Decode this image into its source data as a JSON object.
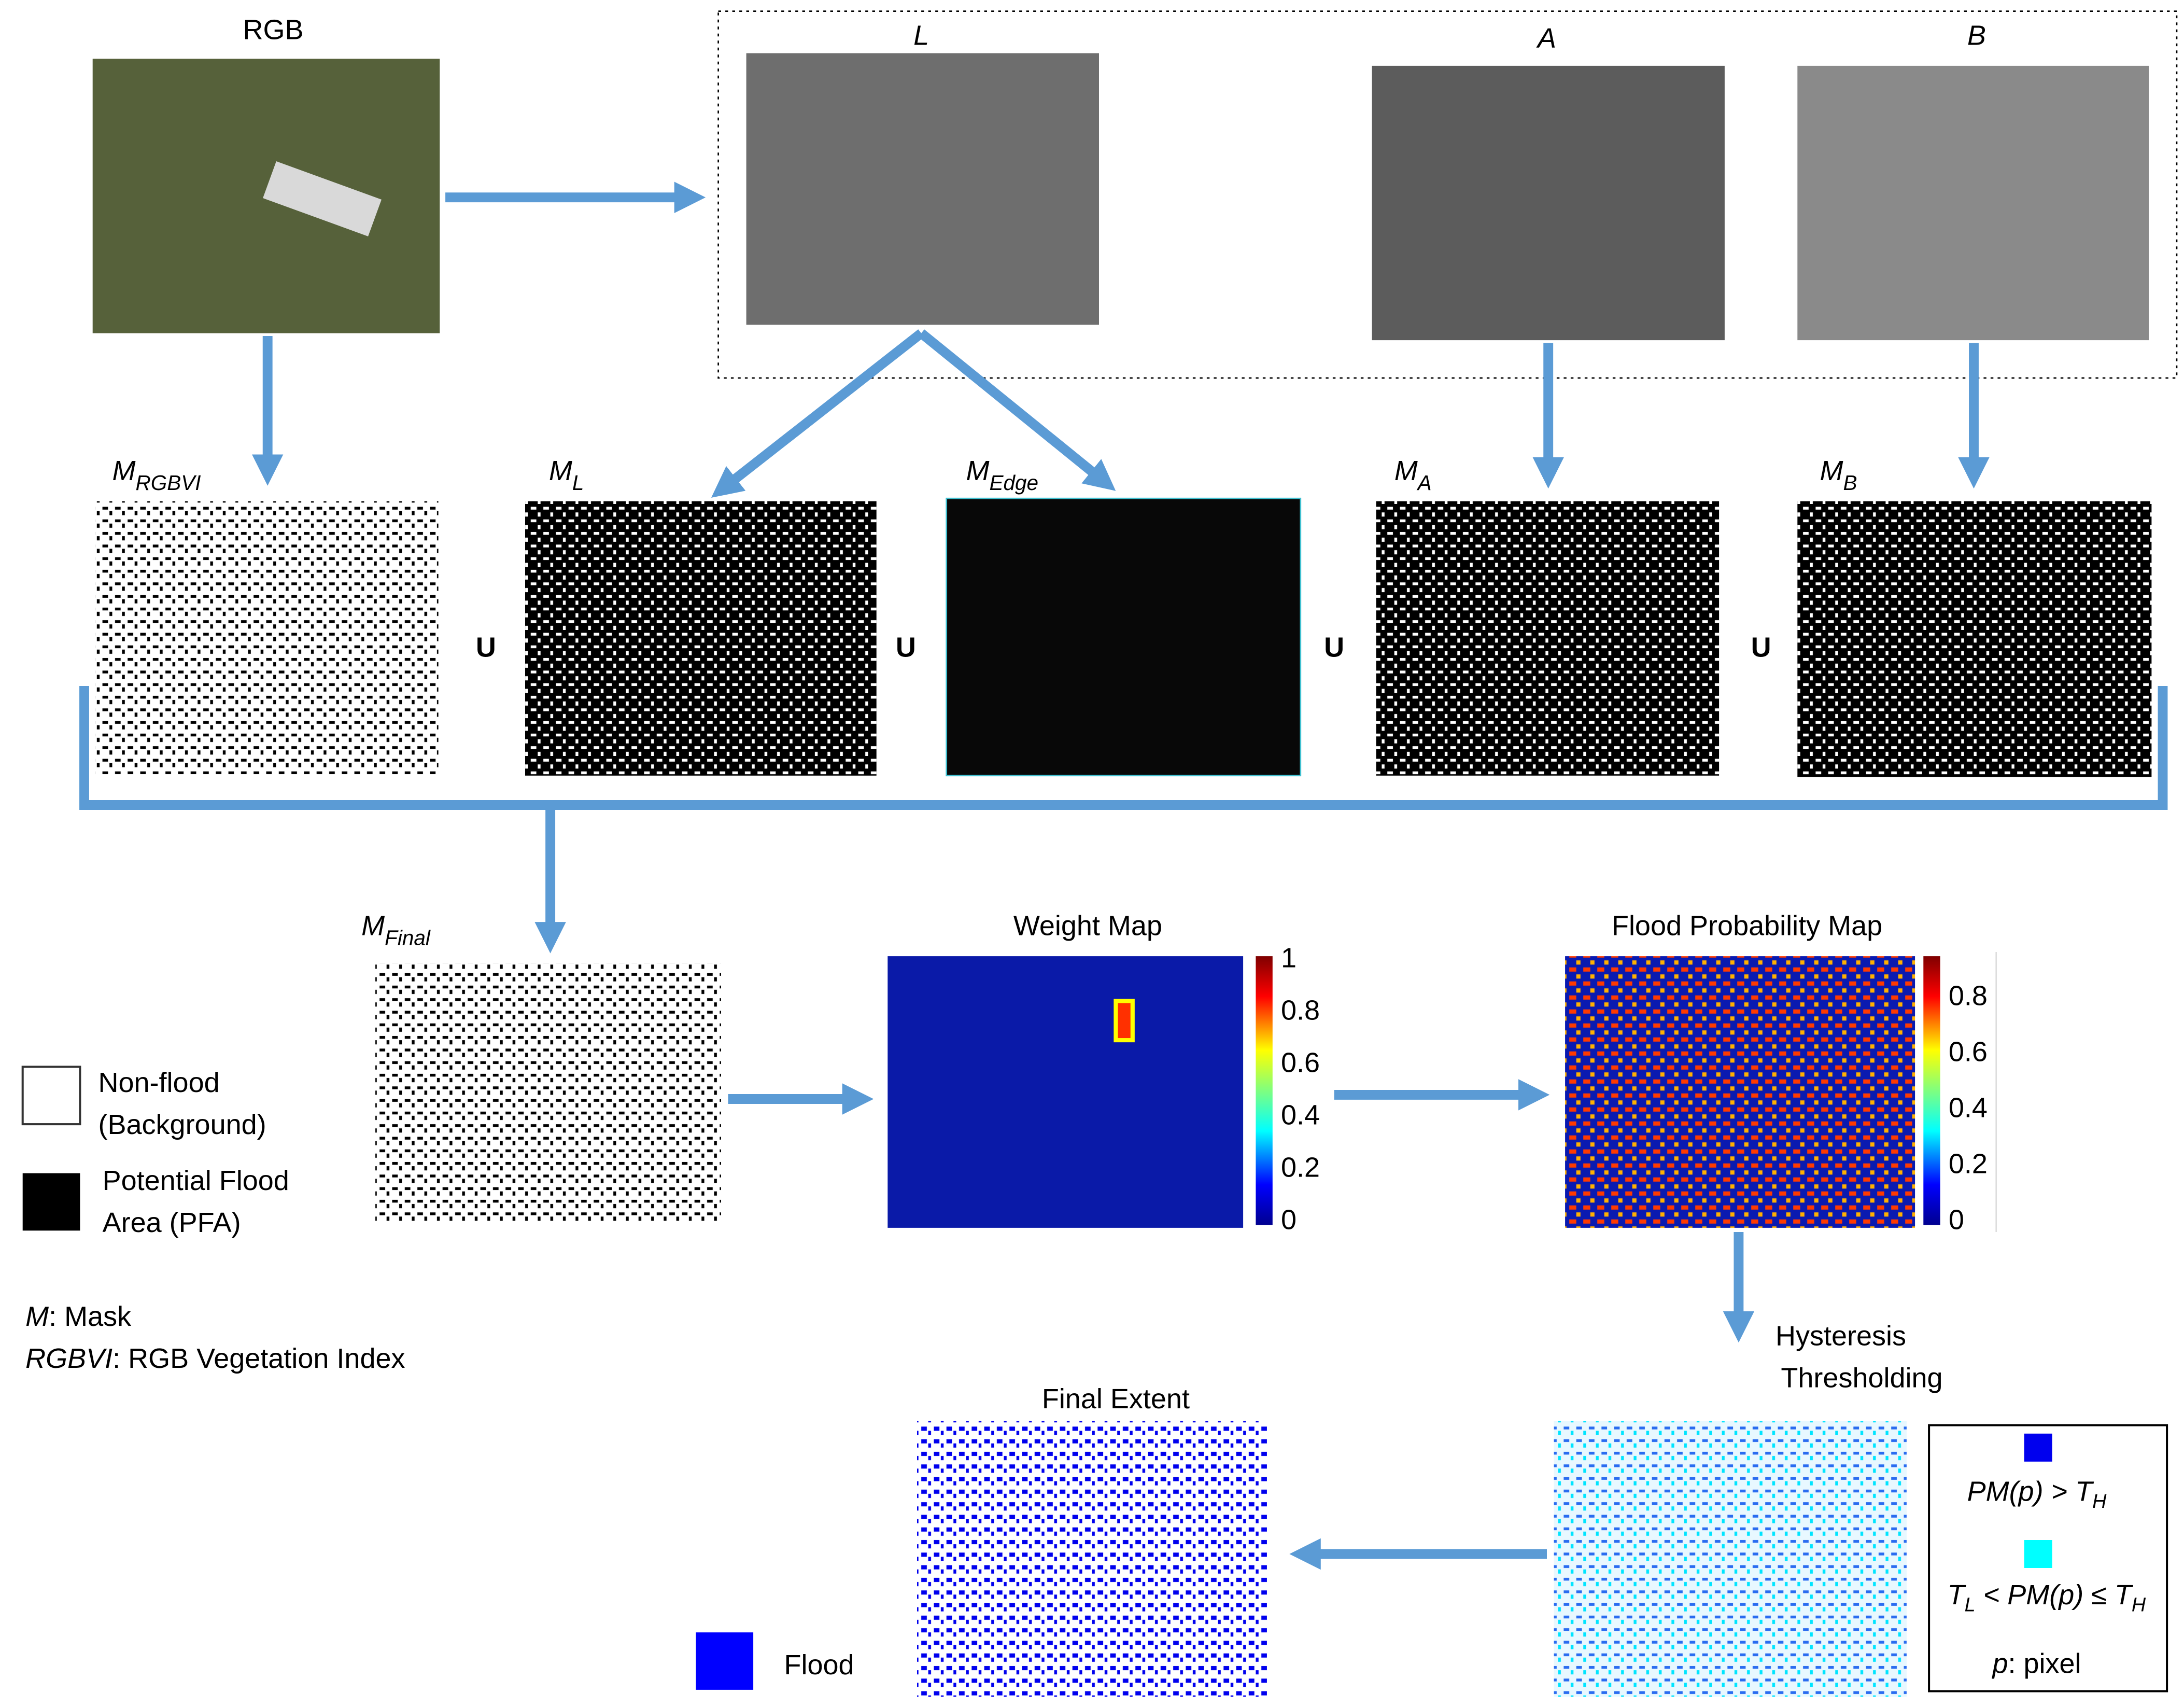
{
  "images": {
    "rgb": "RGB",
    "lab": {
      "l": "L",
      "a": "A",
      "b": "B"
    },
    "masks": [
      {
        "symbol": "M",
        "sub": "RGBVI"
      },
      {
        "symbol": "M",
        "sub": "L"
      },
      {
        "symbol": "M",
        "sub": "Edge"
      },
      {
        "symbol": "M",
        "sub": "A"
      },
      {
        "symbol": "M",
        "sub": "B"
      }
    ],
    "unions": [
      "U",
      "U",
      "U",
      "U"
    ],
    "final_mask": {
      "symbol": "M",
      "sub": "Final"
    },
    "weight_map": {
      "title": "Weight Map",
      "colorbar_ticks": [
        1,
        0.8,
        0.6,
        0.4,
        0.2,
        0
      ]
    },
    "probability_map": {
      "title": "Flood Probability Map",
      "colorbar_ticks": [
        0.8,
        0.6,
        0.4,
        0.2,
        0
      ]
    },
    "hysteresis": [
      "Hysteresis",
      "Thresholding"
    ],
    "final_extent": "Final Extent"
  },
  "legend": {
    "non_flood": [
      "Non-flood",
      "(Background)"
    ],
    "pfa": [
      "Potential Flood",
      "Area (PFA)"
    ],
    "notes": [
      {
        "term": "M",
        "text": ": Mask"
      },
      {
        "term": "RGBVI",
        "text": ": RGB Vegetation Index"
      }
    ],
    "flood": "Flood"
  },
  "threshold_legend": {
    "high": {
      "lhs": "PM(p) > T",
      "sub": "H"
    },
    "mid": {
      "t": "T",
      "sub1": "L",
      "middle": " < PM(p) ≤ T",
      "sub2": "H"
    },
    "pixel": {
      "term": "p",
      "text": ": pixel"
    }
  }
}
